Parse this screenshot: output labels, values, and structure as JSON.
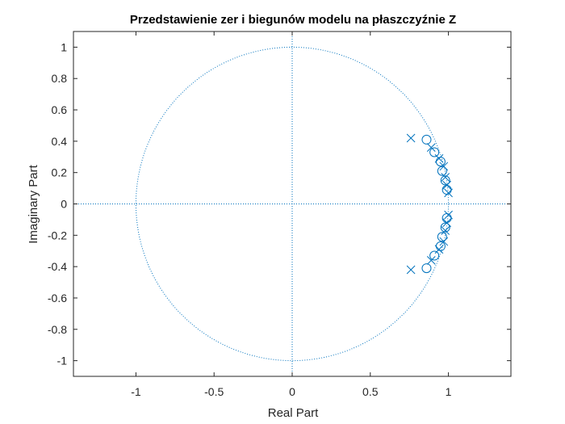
{
  "chart_data": {
    "type": "scatter",
    "title": "Przedstawienie zer i biegunów modelu na płaszczyźnie Z",
    "xlabel": "Real Part",
    "ylabel": "Imaginary Part",
    "xlim": [
      -1.4,
      1.4
    ],
    "ylim": [
      -1.1,
      1.1
    ],
    "x_ticks": [
      -1,
      -0.5,
      0,
      0.5,
      1
    ],
    "y_ticks": [
      -1,
      -0.8,
      -0.6,
      -0.4,
      -0.2,
      0,
      0.2,
      0.4,
      0.6,
      0.8,
      1
    ],
    "grid": false,
    "unit_circle": true,
    "marker_color": "#0072BD",
    "axis_color": "#262626",
    "series": [
      {
        "marker": "circle",
        "points": [
          [
            0.86,
            0.41
          ],
          [
            0.91,
            0.33
          ],
          [
            0.95,
            0.27
          ],
          [
            0.96,
            0.21
          ],
          [
            0.98,
            0.15
          ],
          [
            0.99,
            0.09
          ],
          [
            0.86,
            -0.41
          ],
          [
            0.91,
            -0.33
          ],
          [
            0.95,
            -0.27
          ],
          [
            0.96,
            -0.21
          ],
          [
            0.98,
            -0.15
          ],
          [
            0.99,
            -0.09
          ]
        ]
      },
      {
        "marker": "cross",
        "points": [
          [
            0.76,
            0.42
          ],
          [
            0.89,
            0.36
          ],
          [
            0.94,
            0.29
          ],
          [
            0.97,
            0.24
          ],
          [
            0.98,
            0.17
          ],
          [
            0.99,
            0.12
          ],
          [
            1.0,
            0.07
          ],
          [
            0.76,
            -0.42
          ],
          [
            0.89,
            -0.36
          ],
          [
            0.94,
            -0.29
          ],
          [
            0.97,
            -0.24
          ],
          [
            0.98,
            -0.17
          ],
          [
            0.99,
            -0.12
          ],
          [
            1.0,
            -0.07
          ]
        ]
      }
    ]
  }
}
